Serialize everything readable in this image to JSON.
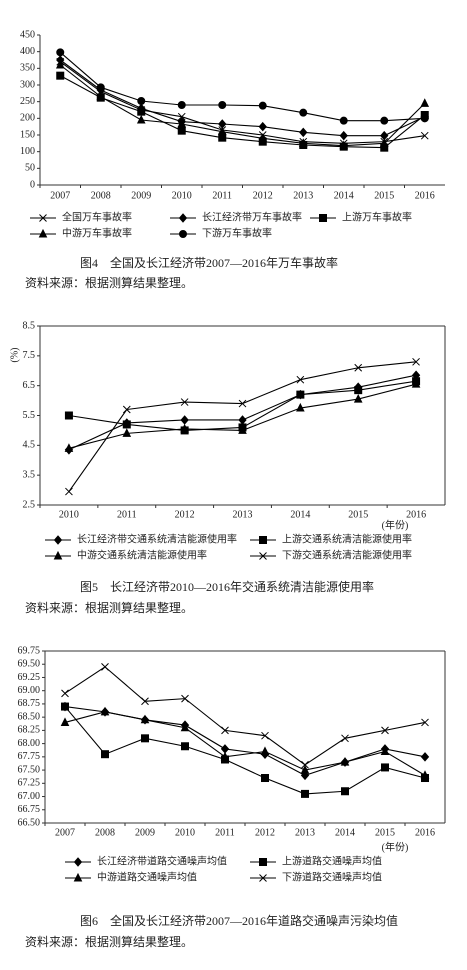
{
  "chart_data": [
    {
      "type": "line",
      "title": "图4　全国及长江经济带2007—2016年万车事故率",
      "source": "资料来源：根据测算结果整理。",
      "categories": [
        "2007",
        "2008",
        "2009",
        "2010",
        "2011",
        "2012",
        "2013",
        "2014",
        "2015",
        "2016"
      ],
      "ylim": [
        0,
        450
      ],
      "yticks": [
        0,
        50,
        100,
        150,
        200,
        250,
        300,
        350,
        400,
        450
      ],
      "series": [
        {
          "name": "全国万车事故率",
          "color": "#000000",
          "marker": "cross",
          "values": [
            370,
            280,
            225,
            205,
            165,
            150,
            130,
            125,
            130,
            148
          ]
        },
        {
          "name": "长江经济带万车事故率",
          "color": "#000000",
          "marker": "diamond",
          "values": [
            375,
            285,
            230,
            190,
            183,
            175,
            158,
            148,
            148,
            205
          ]
        },
        {
          "name": "上游万车事故率",
          "color": "#000000",
          "marker": "square",
          "values": [
            328,
            262,
            220,
            163,
            142,
            130,
            120,
            115,
            112,
            210
          ]
        },
        {
          "name": "中游万车事故率",
          "color": "#000000",
          "marker": "triangle",
          "values": [
            360,
            265,
            195,
            183,
            160,
            140,
            125,
            118,
            125,
            245
          ]
        },
        {
          "name": "下游万车事故率",
          "color": "#000000",
          "marker": "circle",
          "values": [
            398,
            293,
            252,
            240,
            240,
            238,
            217,
            193,
            193,
            200
          ]
        }
      ]
    },
    {
      "type": "line",
      "title": "图5　长江经济带2010—2016年交通系统清洁能源使用率",
      "source": "资料来源：根据测算结果整理。",
      "y_label": "(%)",
      "x_label": "(年份)",
      "categories": [
        "2010",
        "2011",
        "2012",
        "2013",
        "2014",
        "2015",
        "2016"
      ],
      "ylim": [
        2.5,
        8.5
      ],
      "yticks": [
        2.5,
        3.5,
        4.5,
        5.5,
        6.5,
        7.5,
        8.5
      ],
      "series": [
        {
          "name": "长江经济带交通系统清洁能源使用率",
          "color": "#000000",
          "marker": "diamond",
          "values": [
            4.35,
            5.25,
            5.35,
            5.35,
            6.2,
            6.45,
            6.85
          ]
        },
        {
          "name": "上游交通系统清洁能源使用率",
          "color": "#000000",
          "marker": "square",
          "values": [
            5.5,
            5.2,
            5.0,
            5.1,
            6.2,
            6.35,
            6.65
          ]
        },
        {
          "name": "中游交通系统清洁能源使用率",
          "color": "#000000",
          "marker": "triangle",
          "values": [
            4.4,
            4.9,
            5.05,
            5.0,
            5.75,
            6.05,
            6.55
          ]
        },
        {
          "name": "下游交通系统清洁能源使用率",
          "color": "#000000",
          "marker": "cross",
          "values": [
            2.95,
            5.7,
            5.95,
            5.9,
            6.7,
            7.1,
            7.3
          ]
        }
      ]
    },
    {
      "type": "line",
      "title": "图6　全国及长江经济带2007—2016年道路交通噪声污染均值",
      "source": "资料来源：根据测算结果整理。",
      "x_label": "(年份)",
      "categories": [
        "2007",
        "2008",
        "2009",
        "2010",
        "2011",
        "2012",
        "2013",
        "2014",
        "2015",
        "2016"
      ],
      "ylim": [
        66.5,
        69.75
      ],
      "yticks": [
        {
          "value": 66.5,
          "label": "66.50"
        },
        66.75,
        {
          "value": 67,
          "label": "67.00"
        },
        67.25,
        {
          "value": 67.5,
          "label": "67.50"
        },
        67.75,
        {
          "value": 68,
          "label": "68.00"
        },
        68.25,
        {
          "value": 68.5,
          "label": "68.50"
        },
        68.75,
        {
          "value": 69,
          "label": "69.00"
        },
        69.25,
        {
          "value": 69.5,
          "label": "69.50"
        },
        69.75
      ],
      "series": [
        {
          "name": "长江经济带道路交通噪声均值",
          "color": "#000000",
          "marker": "diamond",
          "values": [
            68.7,
            68.6,
            68.45,
            68.35,
            67.9,
            67.8,
            67.4,
            67.65,
            67.9,
            67.75
          ]
        },
        {
          "name": "上游道路交通噪声均值",
          "color": "#000000",
          "marker": "square",
          "values": [
            68.7,
            67.8,
            68.1,
            67.95,
            67.7,
            67.35,
            67.05,
            67.1,
            67.55,
            67.35
          ]
        },
        {
          "name": "中游道路交通噪声均值",
          "color": "#000000",
          "marker": "triangle",
          "values": [
            68.4,
            68.6,
            68.45,
            68.3,
            67.75,
            67.85,
            67.5,
            67.65,
            67.85,
            67.4
          ]
        },
        {
          "name": "下游道路交通噪声均值",
          "color": "#000000",
          "marker": "cross",
          "values": [
            68.95,
            69.45,
            68.8,
            68.85,
            68.25,
            68.15,
            67.6,
            68.1,
            68.25,
            68.4
          ]
        }
      ]
    }
  ]
}
